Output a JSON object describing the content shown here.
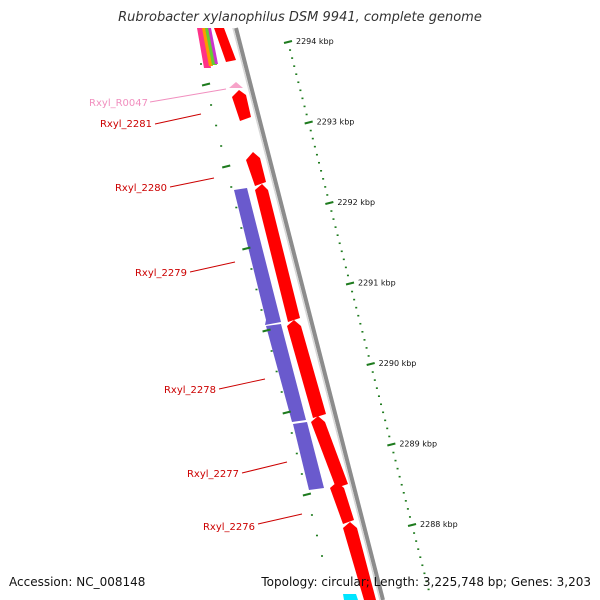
{
  "title": "Rubrobacter xylanophilus DSM 9941, complete genome",
  "footer": {
    "accession": "Accession: NC_008148",
    "summary": "Topology: circular; Length: 3,225,748 bp; Genes: 3,203"
  },
  "colors": {
    "forward_gene": "#ff0000",
    "reverse_gene": "#6a5acd",
    "rna_gene": "#f7a3c9",
    "backbone": "#8c8c8c",
    "tick": "#1e7b1e",
    "label_cds": "#cc0000",
    "label_rna": "#f18fbf"
  },
  "scale": {
    "ticks": [
      {
        "label": "2294 kbp"
      },
      {
        "label": "2293 kbp"
      },
      {
        "label": "2292 kbp"
      },
      {
        "label": "2291 kbp"
      },
      {
        "label": "2290 kbp"
      },
      {
        "label": "2289 kbp"
      },
      {
        "label": "2288 kbp"
      }
    ]
  },
  "genes": [
    {
      "name": "Rxyl_R0047",
      "type": "rna"
    },
    {
      "name": "Rxyl_2281",
      "type": "cds"
    },
    {
      "name": "Rxyl_2280",
      "type": "cds"
    },
    {
      "name": "Rxyl_2279",
      "type": "cds"
    },
    {
      "name": "Rxyl_2278",
      "type": "cds"
    },
    {
      "name": "Rxyl_2277",
      "type": "cds"
    },
    {
      "name": "Rxyl_2276",
      "type": "cds"
    }
  ]
}
